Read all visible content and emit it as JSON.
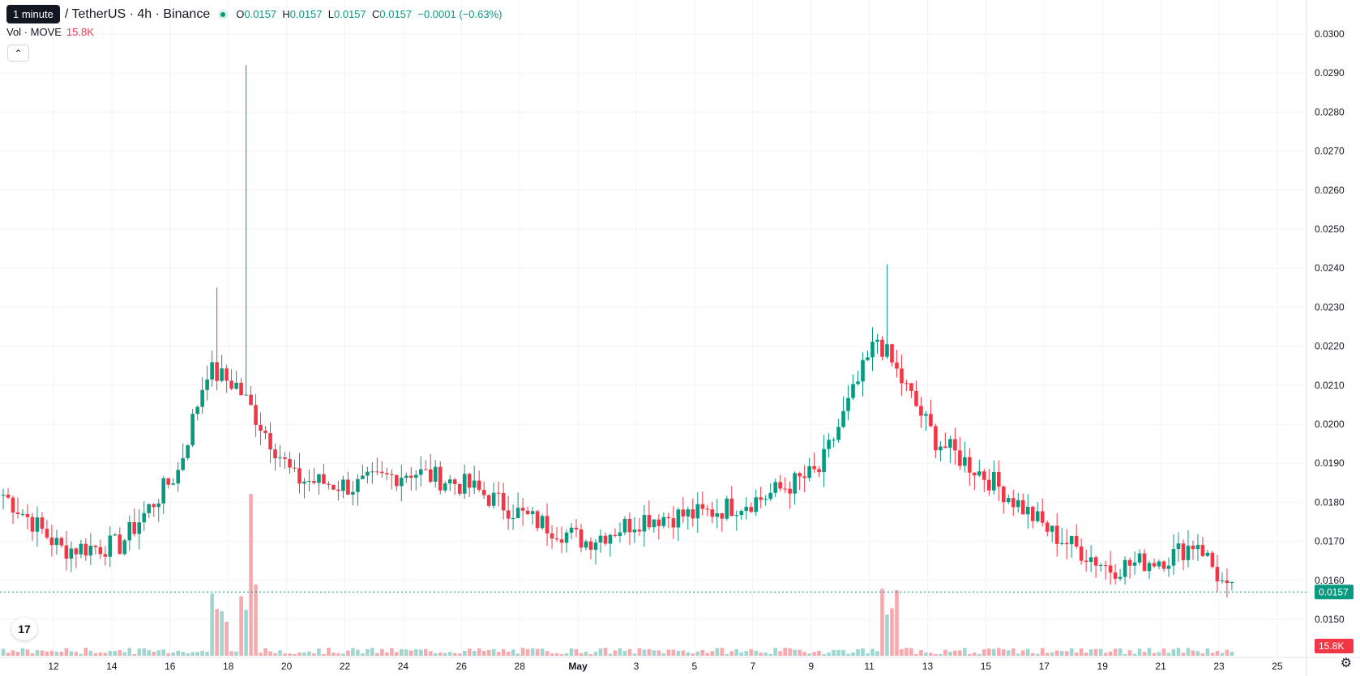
{
  "header": {
    "tooltip": "1 minute",
    "symbol": "/ TetherUS · 4h · Binance",
    "o_label": "O",
    "o": "0.0157",
    "h_label": "H",
    "h": "0.0157",
    "l_label": "L",
    "l": "0.0157",
    "c_label": "C",
    "c": "0.0157",
    "change": "−0.0001 (−0.63%)"
  },
  "volume_legend": {
    "label": "Vol · MOVE",
    "value": "15.8K"
  },
  "colors": {
    "up": "#089981",
    "down": "#f23645",
    "up_vol": "#9fd6cf",
    "down_vol": "#f7a9ae",
    "grid": "#f0f3fa"
  },
  "chart_data": {
    "type": "candlestick",
    "symbol": "TetherUS · 4h · Binance",
    "ylim": [
      0.0142,
      0.0305
    ],
    "y_ticks": [
      "0.0150",
      "0.0160",
      "0.0170",
      "0.0180",
      "0.0190",
      "0.0200",
      "0.0210",
      "0.0220",
      "0.0230",
      "0.0240",
      "0.0250",
      "0.0260",
      "0.0270",
      "0.0280",
      "0.0290",
      "0.0300"
    ],
    "x_ticks": [
      "12",
      "14",
      "16",
      "18",
      "20",
      "22",
      "24",
      "26",
      "28",
      "May",
      "3",
      "5",
      "7",
      "9",
      "11",
      "13",
      "15",
      "17",
      "19",
      "21",
      "23",
      "25"
    ],
    "last_price": "0.0157",
    "last_volume": "15.8K",
    "key_points": [
      {
        "date": "Apr 11",
        "close": 0.0182
      },
      {
        "date": "Apr 13",
        "close": 0.0168
      },
      {
        "date": "Apr 15",
        "close": 0.0169
      },
      {
        "date": "Apr 17",
        "close": 0.0188
      },
      {
        "date": "Apr 18",
        "high": 0.0235,
        "close": 0.0214
      },
      {
        "date": "Apr 19",
        "high": 0.0292,
        "close": 0.021
      },
      {
        "date": "Apr 21",
        "close": 0.0186
      },
      {
        "date": "Apr 23",
        "close": 0.0184
      },
      {
        "date": "Apr 25",
        "close": 0.0188
      },
      {
        "date": "Apr 27",
        "close": 0.0184
      },
      {
        "date": "Apr 29",
        "close": 0.0176
      },
      {
        "date": "May 1",
        "close": 0.017
      },
      {
        "date": "May 3",
        "close": 0.0176
      },
      {
        "date": "May 5",
        "close": 0.0177
      },
      {
        "date": "May 7",
        "close": 0.0181
      },
      {
        "date": "May 9",
        "close": 0.0188
      },
      {
        "date": "May 11",
        "high": 0.0241,
        "close": 0.0222
      },
      {
        "date": "May 13",
        "close": 0.0196
      },
      {
        "date": "May 15",
        "close": 0.0185
      },
      {
        "date": "May 17",
        "close": 0.0172
      },
      {
        "date": "May 19",
        "close": 0.0163
      },
      {
        "date": "May 21",
        "close": 0.0166
      },
      {
        "date": "May 22",
        "close": 0.017
      },
      {
        "date": "May 23",
        "close": 0.0157
      }
    ]
  }
}
